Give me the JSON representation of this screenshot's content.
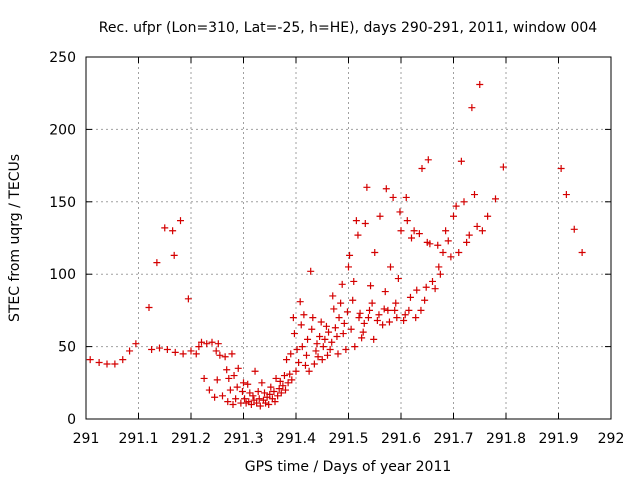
{
  "chart_data": {
    "type": "scatter",
    "title": "Rec. ufpr (Lon=310, Lat=-25, h=HE), days 290-291, 2011, window 004",
    "xlabel": "GPS time / Days of year 2011",
    "ylabel": "STEC from uqrg / TECUs",
    "xlim": [
      291,
      292
    ],
    "ylim": [
      0,
      250
    ],
    "grid": true,
    "marker": "plus",
    "marker_color": "#d40000",
    "x_ticks": [
      291,
      291.1,
      291.2,
      291.3,
      291.4,
      291.5,
      291.6,
      291.7,
      291.8,
      291.9,
      292
    ],
    "x_tick_labels": [
      "291",
      "291.1",
      "291.2",
      "291.3",
      "291.4",
      "291.5",
      "291.6",
      "291.7",
      "291.8",
      "291.9",
      "292"
    ],
    "y_ticks": [
      0,
      50,
      100,
      150,
      200,
      250
    ],
    "y_tick_labels": [
      "0",
      "50",
      "100",
      "150",
      "200",
      "250"
    ],
    "series": [
      {
        "name": "STEC",
        "points": [
          [
            291.008,
            41
          ],
          [
            291.025,
            39
          ],
          [
            291.04,
            38
          ],
          [
            291.055,
            38
          ],
          [
            291.07,
            41
          ],
          [
            291.083,
            47
          ],
          [
            291.095,
            52
          ],
          [
            291.12,
            77
          ],
          [
            291.125,
            48
          ],
          [
            291.135,
            108
          ],
          [
            291.14,
            49
          ],
          [
            291.15,
            132
          ],
          [
            291.155,
            48
          ],
          [
            291.165,
            130
          ],
          [
            291.168,
            113
          ],
          [
            291.17,
            46
          ],
          [
            291.18,
            137
          ],
          [
            291.185,
            45
          ],
          [
            291.195,
            83
          ],
          [
            291.2,
            47
          ],
          [
            291.21,
            45
          ],
          [
            291.215,
            50
          ],
          [
            291.22,
            53
          ],
          [
            291.225,
            28
          ],
          [
            291.23,
            52
          ],
          [
            291.235,
            20
          ],
          [
            291.24,
            53
          ],
          [
            291.245,
            15
          ],
          [
            291.248,
            47
          ],
          [
            291.25,
            27
          ],
          [
            291.252,
            52
          ],
          [
            291.255,
            44
          ],
          [
            291.26,
            16
          ],
          [
            291.265,
            43
          ],
          [
            291.268,
            34
          ],
          [
            291.27,
            12
          ],
          [
            291.272,
            28
          ],
          [
            291.275,
            20
          ],
          [
            291.278,
            45
          ],
          [
            291.28,
            10
          ],
          [
            291.282,
            30
          ],
          [
            291.285,
            14
          ],
          [
            291.288,
            22
          ],
          [
            291.29,
            35
          ],
          [
            291.295,
            11
          ],
          [
            291.298,
            19
          ],
          [
            291.3,
            25
          ],
          [
            291.302,
            14
          ],
          [
            291.305,
            11
          ],
          [
            291.308,
            24
          ],
          [
            291.31,
            12
          ],
          [
            291.312,
            18
          ],
          [
            291.315,
            10
          ],
          [
            291.318,
            16
          ],
          [
            291.32,
            13
          ],
          [
            291.322,
            33
          ],
          [
            291.325,
            11
          ],
          [
            291.328,
            19
          ],
          [
            291.33,
            14
          ],
          [
            291.332,
            9
          ],
          [
            291.335,
            25
          ],
          [
            291.338,
            13
          ],
          [
            291.34,
            18
          ],
          [
            291.342,
            11
          ],
          [
            291.345,
            15
          ],
          [
            291.348,
            10
          ],
          [
            291.35,
            17
          ],
          [
            291.352,
            22
          ],
          [
            291.355,
            14
          ],
          [
            291.358,
            19
          ],
          [
            291.36,
            12
          ],
          [
            291.362,
            28
          ],
          [
            291.365,
            16
          ],
          [
            291.368,
            21
          ],
          [
            291.37,
            26
          ],
          [
            291.372,
            18
          ],
          [
            291.375,
            23
          ],
          [
            291.378,
            30
          ],
          [
            291.38,
            20
          ],
          [
            291.382,
            41
          ],
          [
            291.385,
            25
          ],
          [
            291.388,
            31
          ],
          [
            291.39,
            45
          ],
          [
            291.392,
            27
          ],
          [
            291.395,
            70
          ],
          [
            291.397,
            59
          ],
          [
            291.4,
            33
          ],
          [
            291.402,
            48
          ],
          [
            291.405,
            39
          ],
          [
            291.408,
            81
          ],
          [
            291.41,
            65
          ],
          [
            291.412,
            50
          ],
          [
            291.415,
            72
          ],
          [
            291.418,
            37
          ],
          [
            291.42,
            44
          ],
          [
            291.422,
            55
          ],
          [
            291.425,
            33
          ],
          [
            291.428,
            102
          ],
          [
            291.43,
            62
          ],
          [
            291.432,
            70
          ],
          [
            291.435,
            38
          ],
          [
            291.438,
            47
          ],
          [
            291.44,
            52
          ],
          [
            291.442,
            43
          ],
          [
            291.445,
            57
          ],
          [
            291.448,
            67
          ],
          [
            291.45,
            41
          ],
          [
            291.452,
            50
          ],
          [
            291.455,
            55
          ],
          [
            291.458,
            64
          ],
          [
            291.46,
            44
          ],
          [
            291.462,
            60
          ],
          [
            291.465,
            48
          ],
          [
            291.468,
            53
          ],
          [
            291.47,
            85
          ],
          [
            291.472,
            76
          ],
          [
            291.475,
            63
          ],
          [
            291.478,
            57
          ],
          [
            291.48,
            45
          ],
          [
            291.482,
            70
          ],
          [
            291.485,
            80
          ],
          [
            291.488,
            93
          ],
          [
            291.49,
            59
          ],
          [
            291.492,
            66
          ],
          [
            291.495,
            48
          ],
          [
            291.498,
            74
          ],
          [
            291.5,
            105
          ],
          [
            291.502,
            113
          ],
          [
            291.505,
            62
          ],
          [
            291.508,
            82
          ],
          [
            291.51,
            95
          ],
          [
            291.512,
            50
          ],
          [
            291.515,
            137
          ],
          [
            291.518,
            127
          ],
          [
            291.52,
            70
          ],
          [
            291.522,
            73
          ],
          [
            291.525,
            56
          ],
          [
            291.528,
            60
          ],
          [
            291.53,
            66
          ],
          [
            291.532,
            135
          ],
          [
            291.535,
            160
          ],
          [
            291.538,
            70
          ],
          [
            291.54,
            75
          ],
          [
            291.542,
            92
          ],
          [
            291.545,
            80
          ],
          [
            291.548,
            55
          ],
          [
            291.55,
            115
          ],
          [
            291.555,
            68
          ],
          [
            291.558,
            72
          ],
          [
            291.56,
            140
          ],
          [
            291.565,
            65
          ],
          [
            291.568,
            76
          ],
          [
            291.57,
            88
          ],
          [
            291.572,
            159
          ],
          [
            291.575,
            75
          ],
          [
            291.578,
            67
          ],
          [
            291.58,
            105
          ],
          [
            291.585,
            153
          ],
          [
            291.588,
            75
          ],
          [
            291.59,
            80
          ],
          [
            291.592,
            70
          ],
          [
            291.595,
            97
          ],
          [
            291.598,
            143
          ],
          [
            291.6,
            130
          ],
          [
            291.605,
            68
          ],
          [
            291.608,
            72
          ],
          [
            291.61,
            153
          ],
          [
            291.612,
            137
          ],
          [
            291.615,
            75
          ],
          [
            291.618,
            84
          ],
          [
            291.62,
            125
          ],
          [
            291.625,
            130
          ],
          [
            291.628,
            70
          ],
          [
            291.63,
            89
          ],
          [
            291.635,
            128
          ],
          [
            291.638,
            75
          ],
          [
            291.64,
            173
          ],
          [
            291.645,
            82
          ],
          [
            291.648,
            91
          ],
          [
            291.65,
            122
          ],
          [
            291.652,
            179
          ],
          [
            291.655,
            121
          ],
          [
            291.66,
            95
          ],
          [
            291.665,
            90
          ],
          [
            291.67,
            120
          ],
          [
            291.672,
            105
          ],
          [
            291.675,
            100
          ],
          [
            291.68,
            115
          ],
          [
            291.685,
            130
          ],
          [
            291.69,
            123
          ],
          [
            291.695,
            112
          ],
          [
            291.7,
            140
          ],
          [
            291.705,
            147
          ],
          [
            291.71,
            115
          ],
          [
            291.715,
            178
          ],
          [
            291.72,
            150
          ],
          [
            291.725,
            122
          ],
          [
            291.73,
            127
          ],
          [
            291.735,
            215
          ],
          [
            291.74,
            155
          ],
          [
            291.745,
            133
          ],
          [
            291.75,
            231
          ],
          [
            291.755,
            130
          ],
          [
            291.765,
            140
          ],
          [
            291.78,
            152
          ],
          [
            291.795,
            174
          ],
          [
            291.905,
            173
          ],
          [
            291.915,
            155
          ],
          [
            291.93,
            131
          ],
          [
            291.945,
            115
          ]
        ]
      }
    ]
  }
}
